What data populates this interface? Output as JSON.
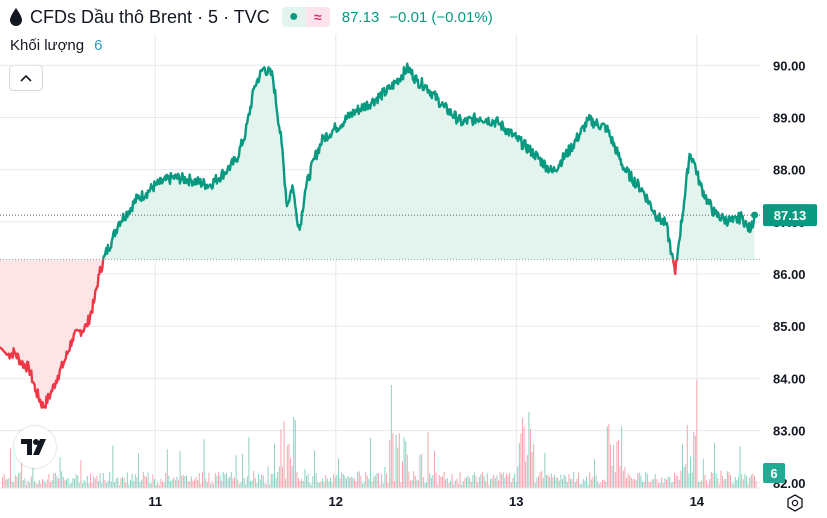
{
  "header": {
    "title": "CFDs Dầu thô Brent · 5 · TVC",
    "price": "87.13",
    "change": "−0.01 (−0.01%)",
    "icons": [
      "oil-drop-icon",
      "market-open-dot-icon",
      "approx-data-icon"
    ]
  },
  "volume": {
    "label": "Khối lượng",
    "value": "6"
  },
  "colors": {
    "up": "#089981",
    "down": "#f23645",
    "up_fill": "#e3f3ee",
    "down_fill": "#fde5e7",
    "grid": "#e6e8ee",
    "text": "#131722"
  },
  "chart_data": {
    "type": "area",
    "symbol": "CFDs Dầu thô Brent",
    "interval": "5",
    "source": "TVC",
    "last_price": 87.13,
    "previous_close_baseline": 86.28,
    "ylim": [
      81.9,
      90.6
    ],
    "y_ticks": [
      "82.00",
      "83.00",
      "84.00",
      "85.00",
      "86.00",
      "87.00",
      "88.00",
      "89.00",
      "90.00"
    ],
    "y_tick_values": [
      82,
      83,
      84,
      85,
      86,
      87,
      88,
      89,
      90
    ],
    "x_ticks": [
      "11",
      "12",
      "13",
      "14"
    ],
    "x_tick_times": [
      11,
      12,
      13,
      14
    ],
    "xlim": [
      10.14,
      14.35
    ],
    "series": [
      {
        "points": [
          [
            10.14,
            84.6
          ],
          [
            10.18,
            84.45
          ],
          [
            10.22,
            84.5
          ],
          [
            10.26,
            84.3
          ],
          [
            10.3,
            84.2
          ],
          [
            10.34,
            83.75
          ],
          [
            10.38,
            83.45
          ],
          [
            10.42,
            83.7
          ],
          [
            10.46,
            84.05
          ],
          [
            10.5,
            84.35
          ],
          [
            10.54,
            84.75
          ],
          [
            10.58,
            84.9
          ],
          [
            10.62,
            85.0
          ],
          [
            10.66,
            85.45
          ],
          [
            10.69,
            86.0
          ],
          [
            10.72,
            86.35
          ],
          [
            10.76,
            86.65
          ],
          [
            10.8,
            87.0
          ],
          [
            10.85,
            87.2
          ],
          [
            10.9,
            87.45
          ],
          [
            10.95,
            87.55
          ],
          [
            11.0,
            87.7
          ],
          [
            11.1,
            87.85
          ],
          [
            11.2,
            87.8
          ],
          [
            11.3,
            87.7
          ],
          [
            11.4,
            88.0
          ],
          [
            11.45,
            88.2
          ],
          [
            11.5,
            88.7
          ],
          [
            11.55,
            89.6
          ],
          [
            11.6,
            89.95
          ],
          [
            11.65,
            89.8
          ],
          [
            11.7,
            88.5
          ],
          [
            11.73,
            87.3
          ],
          [
            11.76,
            87.7
          ],
          [
            11.78,
            87.2
          ],
          [
            11.8,
            86.85
          ],
          [
            11.83,
            87.6
          ],
          [
            11.88,
            88.2
          ],
          [
            11.93,
            88.6
          ],
          [
            12.0,
            88.8
          ],
          [
            12.1,
            89.1
          ],
          [
            12.2,
            89.3
          ],
          [
            12.3,
            89.55
          ],
          [
            12.4,
            89.95
          ],
          [
            12.45,
            89.7
          ],
          [
            12.5,
            89.6
          ],
          [
            12.6,
            89.2
          ],
          [
            12.7,
            88.9
          ],
          [
            12.8,
            89.0
          ],
          [
            12.9,
            88.9
          ],
          [
            13.0,
            88.6
          ],
          [
            13.1,
            88.3
          ],
          [
            13.2,
            87.95
          ],
          [
            13.3,
            88.4
          ],
          [
            13.4,
            88.95
          ],
          [
            13.5,
            88.8
          ],
          [
            13.6,
            88.0
          ],
          [
            13.7,
            87.6
          ],
          [
            13.78,
            87.1
          ],
          [
            13.83,
            86.95
          ],
          [
            13.86,
            86.4
          ],
          [
            13.88,
            86.0
          ],
          [
            13.9,
            86.6
          ],
          [
            13.93,
            87.4
          ],
          [
            13.96,
            88.3
          ],
          [
            13.98,
            88.2
          ],
          [
            14.02,
            87.7
          ],
          [
            14.06,
            87.4
          ],
          [
            14.1,
            87.15
          ],
          [
            14.15,
            87.05
          ],
          [
            14.2,
            87.0
          ],
          [
            14.25,
            87.1
          ],
          [
            14.28,
            86.9
          ],
          [
            14.3,
            86.85
          ],
          [
            14.32,
            87.13
          ]
        ]
      }
    ],
    "volume_series": {
      "label": "Khối lượng",
      "last_value": 6,
      "note_peaks": [
        [
          11.73,
          "tall"
        ],
        [
          12.35,
          "tall"
        ],
        [
          13.05,
          "tall"
        ],
        [
          13.55,
          "tall"
        ],
        [
          13.95,
          "tall"
        ]
      ]
    }
  }
}
